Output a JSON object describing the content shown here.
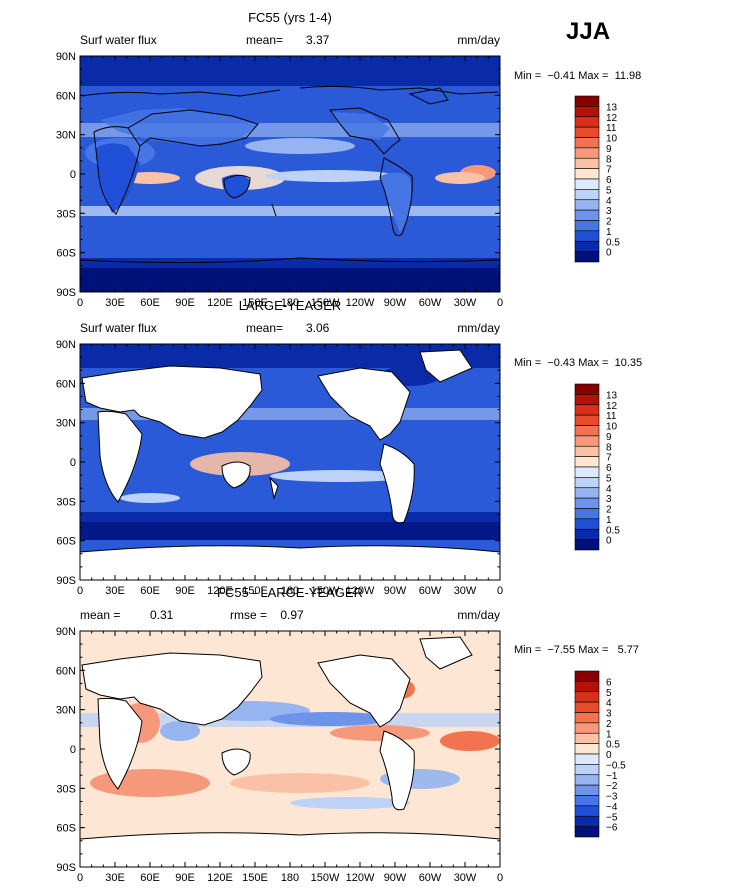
{
  "season": "JJA",
  "panels": [
    {
      "title": "FC55 (yrs 1-4)",
      "left_label": "Surf water flux",
      "mean_label": "mean=",
      "mean_value": "3.37",
      "units": "mm/day",
      "minmax": "Min =  −0.41 Max =  11.98",
      "colorbar_labels": [
        "13",
        "12",
        "11",
        "10",
        "9",
        "8",
        "7",
        "6",
        "5",
        "4",
        "3",
        "2",
        "1",
        "0.5",
        "0"
      ],
      "colorbar_colors": [
        "#8a0000",
        "#b41208",
        "#d6301a",
        "#ea4b2c",
        "#f27350",
        "#f6997a",
        "#f9c1a6",
        "#fde6d3",
        "#dce9fa",
        "#bcd2f6",
        "#95b4f0",
        "#6d94ea",
        "#4676e5",
        "#2050da",
        "#0a2ba8",
        "#00127a"
      ],
      "x_ticks": [
        "0",
        "30E",
        "60E",
        "90E",
        "120E",
        "150E",
        "180",
        "150W",
        "120W",
        "90W",
        "60W",
        "30W",
        "0"
      ],
      "y_ticks": [
        "90N",
        "60N",
        "30N",
        "0",
        "30S",
        "60S",
        "90S"
      ]
    },
    {
      "title": "LARGE-YEAGER",
      "left_label": "Surf water flux",
      "mean_label": "mean=",
      "mean_value": "3.06",
      "units": "mm/day",
      "minmax": "Min =  −0.43 Max =  10.35",
      "colorbar_labels": [
        "13",
        "12",
        "11",
        "10",
        "9",
        "8",
        "7",
        "6",
        "5",
        "4",
        "3",
        "2",
        "1",
        "0.5",
        "0"
      ],
      "colorbar_colors": [
        "#8a0000",
        "#b41208",
        "#d6301a",
        "#ea4b2c",
        "#f27350",
        "#f6997a",
        "#f9c1a6",
        "#fde6d3",
        "#dce9fa",
        "#bcd2f6",
        "#95b4f0",
        "#6d94ea",
        "#4676e5",
        "#2050da",
        "#0a2ba8",
        "#00127a"
      ],
      "x_ticks": [
        "0",
        "30E",
        "60E",
        "90E",
        "120E",
        "150E",
        "180",
        "150W",
        "120W",
        "90W",
        "60W",
        "30W",
        "0"
      ],
      "y_ticks": [
        "90N",
        "60N",
        "30N",
        "0",
        "30S",
        "60S",
        "90S"
      ]
    },
    {
      "title": "FC55 - LARGE-YEAGER",
      "left_label": "mean =",
      "mean_label": "0.31",
      "mean_value": "rmse =    0.97",
      "units": "mm/day",
      "minmax": "Min =  −7.55 Max =   5.77",
      "colorbar_labels": [
        "6",
        "5",
        "4",
        "3",
        "2",
        "1",
        "0.5",
        "0",
        "−0.5",
        "−1",
        "−2",
        "−3",
        "−4",
        "−5",
        "−6"
      ],
      "colorbar_colors": [
        "#8a0000",
        "#b41208",
        "#d6301a",
        "#ea4b2c",
        "#f27350",
        "#f6997a",
        "#f9c1a6",
        "#fde6d3",
        "#dce9fa",
        "#bcd2f6",
        "#95b4f0",
        "#6d94ea",
        "#4676e5",
        "#2050da",
        "#0a2ba8",
        "#00127a"
      ],
      "x_ticks": [
        "0",
        "30E",
        "60E",
        "90E",
        "120E",
        "150E",
        "180",
        "150W",
        "120W",
        "90W",
        "60W",
        "30W",
        "0"
      ],
      "y_ticks": [
        "90N",
        "60N",
        "30N",
        "0",
        "30S",
        "60S",
        "90S"
      ]
    }
  ]
}
